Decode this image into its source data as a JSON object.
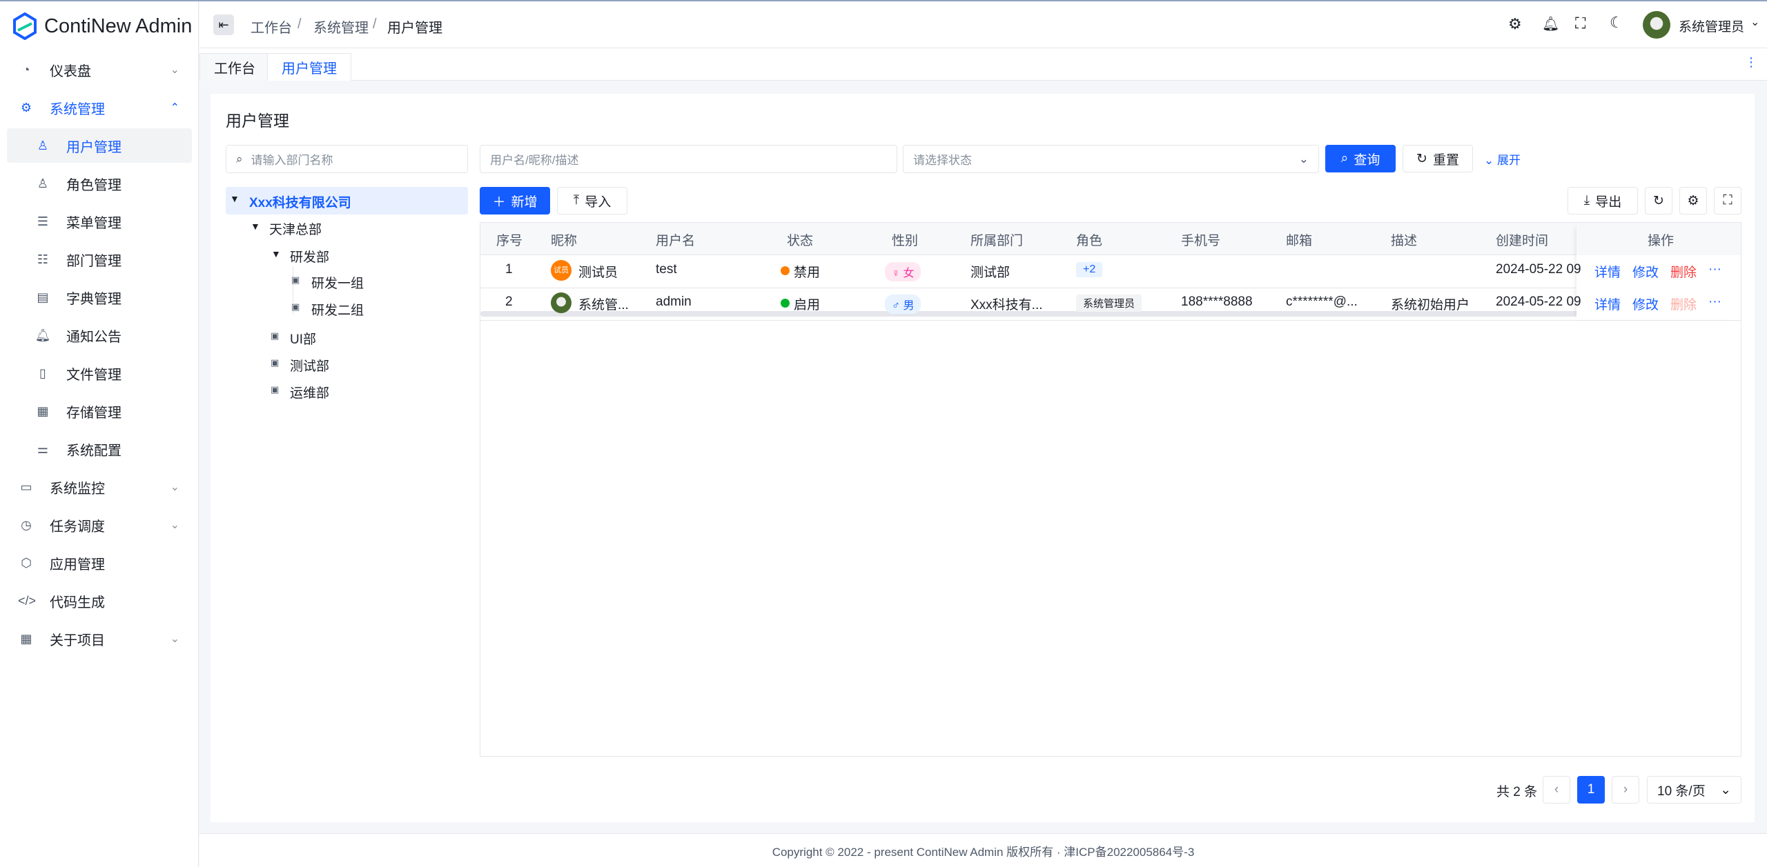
{
  "app": {
    "title": "ContiNew Admin"
  },
  "sidebar": {
    "items": [
      {
        "label": "仪表盘",
        "icon": "dashboard-icon"
      },
      {
        "label": "系统管理",
        "icon": "gear-icon"
      },
      {
        "label": "用户管理",
        "icon": "user-icon"
      },
      {
        "label": "角色管理",
        "icon": "users-icon"
      },
      {
        "label": "菜单管理",
        "icon": "menu-icon"
      },
      {
        "label": "部门管理",
        "icon": "list-icon"
      },
      {
        "label": "字典管理",
        "icon": "dictionary-icon"
      },
      {
        "label": "通知公告",
        "icon": "bell-icon"
      },
      {
        "label": "文件管理",
        "icon": "file-icon"
      },
      {
        "label": "存储管理",
        "icon": "storage-icon"
      },
      {
        "label": "系统配置",
        "icon": "sliders-icon"
      },
      {
        "label": "系统监控",
        "icon": "monitor-icon"
      },
      {
        "label": "任务调度",
        "icon": "clock-icon"
      },
      {
        "label": "应用管理",
        "icon": "cube-icon"
      },
      {
        "label": "代码生成",
        "icon": "code-icon"
      },
      {
        "label": "关于项目",
        "icon": "grid-icon"
      }
    ]
  },
  "header": {
    "breadcrumb": [
      "工作台",
      "系统管理",
      "用户管理"
    ],
    "user": "系统管理员"
  },
  "tabs": [
    "工作台",
    "用户管理"
  ],
  "page": {
    "title": "用户管理"
  },
  "filters": {
    "dept_placeholder": "请输入部门名称",
    "keyword_placeholder": "用户名/昵称/描述",
    "status_placeholder": "请选择状态",
    "query": "查询",
    "reset": "重置",
    "expand": "展开"
  },
  "toolbar": {
    "add": "新增",
    "import": "导入",
    "export": "导出"
  },
  "tree": [
    "Xxx科技有限公司",
    "天津总部",
    "研发部",
    "研发一组",
    "研发二组",
    "UI部",
    "测试部",
    "运维部"
  ],
  "table": {
    "columns": [
      "序号",
      "昵称",
      "用户名",
      "状态",
      "性别",
      "所属部门",
      "角色",
      "手机号",
      "邮箱",
      "描述",
      "创建时间",
      "操作"
    ],
    "rows": [
      {
        "index": "1",
        "avatar_text": "试员",
        "nickname": "测试员",
        "username": "test",
        "status": "禁用",
        "gender": "♀ 女",
        "dept": "测试部",
        "role": "+2",
        "phone": "",
        "email": "",
        "desc": "",
        "created": "2024-05-22 09",
        "actions": [
          "详情",
          "修改",
          "删除",
          "···"
        ]
      },
      {
        "index": "2",
        "avatar_text": "",
        "nickname": "系统管...",
        "username": "admin",
        "status": "启用",
        "gender": "♂ 男",
        "dept": "Xxx科技有...",
        "role": "系统管理员",
        "phone": "188****8888",
        "email": "c********@...",
        "desc": "系统初始用户",
        "created": "2024-05-22 09",
        "actions": [
          "详情",
          "修改",
          "删除",
          "···"
        ]
      }
    ]
  },
  "pagination": {
    "total": "共 2 条",
    "page": "1",
    "page_size": "10 条/页"
  },
  "footer": "Copyright © 2022 - present ContiNew Admin 版权所有 · 津ICP备2022005864号-3",
  "colors": {
    "primary": "#165dff",
    "danger": "#f53f3f",
    "warning": "#ff7d00",
    "success": "#00b42a"
  }
}
